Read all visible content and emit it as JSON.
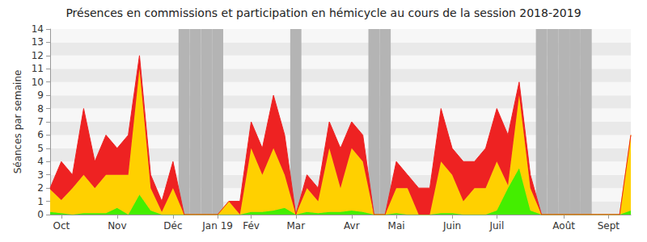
{
  "chart_data": {
    "type": "area",
    "title": "Présences en commissions et participation en hémicycle au cours de la session 2018-2019",
    "y_label": "Séances par semaine",
    "stacked": true,
    "grid": true,
    "categories": [
      null,
      "Oct",
      null,
      null,
      null,
      null,
      "Nov",
      null,
      null,
      null,
      null,
      "Déc",
      null,
      null,
      null,
      "Jan 19",
      null,
      null,
      "Fév",
      null,
      null,
      null,
      "Mar",
      null,
      null,
      null,
      null,
      "Avr",
      null,
      null,
      null,
      "Mai",
      null,
      null,
      null,
      null,
      "Juin",
      null,
      null,
      null,
      "Juil",
      null,
      null,
      null,
      null,
      null,
      "Août",
      null,
      null,
      null,
      "Sept",
      null,
      null
    ],
    "ylim": [
      0,
      14
    ],
    "yticks": [
      0,
      1,
      2,
      3,
      4,
      5,
      6,
      7,
      8,
      9,
      10,
      11,
      12,
      13,
      14
    ],
    "series": [
      {
        "type": "bar",
        "color": "#b4b4b4",
        "values": [
          null,
          null,
          null,
          null,
          null,
          null,
          null,
          null,
          null,
          null,
          null,
          null,
          14,
          14,
          14,
          14,
          null,
          null,
          null,
          null,
          null,
          null,
          14,
          null,
          null,
          null,
          null,
          null,
          null,
          14,
          14,
          null,
          null,
          null,
          null,
          null,
          null,
          null,
          null,
          null,
          null,
          null,
          null,
          null,
          14,
          14,
          14,
          14,
          14,
          null,
          null,
          null,
          null
        ]
      },
      {
        "type": "area",
        "color": "#44ee00",
        "values": [
          0.2,
          0.1,
          0,
          0.1,
          0.1,
          0.1,
          0.5,
          0,
          1.5,
          0.3,
          0,
          0,
          0,
          0,
          0,
          0,
          0,
          0,
          0.2,
          0.2,
          0.3,
          0.5,
          0,
          0.2,
          0.1,
          0.2,
          0.2,
          0.3,
          0.2,
          0,
          0,
          0.1,
          0,
          0,
          0,
          0.1,
          0.1,
          0,
          0,
          0,
          0.3,
          2,
          3.5,
          0.3,
          0,
          0,
          0,
          0,
          0,
          0,
          0,
          0,
          0.3
        ]
      },
      {
        "type": "area",
        "color": "#ffd000",
        "values": [
          1.7,
          1.0,
          2,
          2.9,
          1.9,
          2.9,
          2.5,
          3,
          9.5,
          1.7,
          0.2,
          2,
          0,
          0,
          0,
          0,
          1,
          0,
          4.8,
          2.8,
          4.7,
          2.5,
          0,
          1.8,
          0.9,
          4.8,
          1.8,
          4.7,
          3.8,
          0,
          0,
          1.9,
          2,
          0,
          0,
          3.9,
          2.9,
          1,
          2,
          2,
          3.7,
          0.2,
          5.5,
          1.7,
          0,
          0,
          0,
          0,
          0,
          0,
          0,
          0,
          5.7
        ]
      },
      {
        "type": "area",
        "color": "#ee2222",
        "values": [
          0.1,
          2.9,
          1,
          5,
          2,
          3,
          2,
          3,
          1,
          1,
          0.8,
          2,
          0,
          0,
          0,
          0,
          0,
          1,
          2,
          2,
          4,
          3,
          0,
          1,
          1,
          2,
          3,
          2,
          2,
          0,
          0,
          2,
          1,
          2,
          2,
          4,
          2,
          3,
          2,
          3,
          4,
          3.8,
          1,
          1,
          0,
          0,
          0,
          0,
          0,
          0,
          0,
          0,
          0
        ]
      }
    ]
  }
}
